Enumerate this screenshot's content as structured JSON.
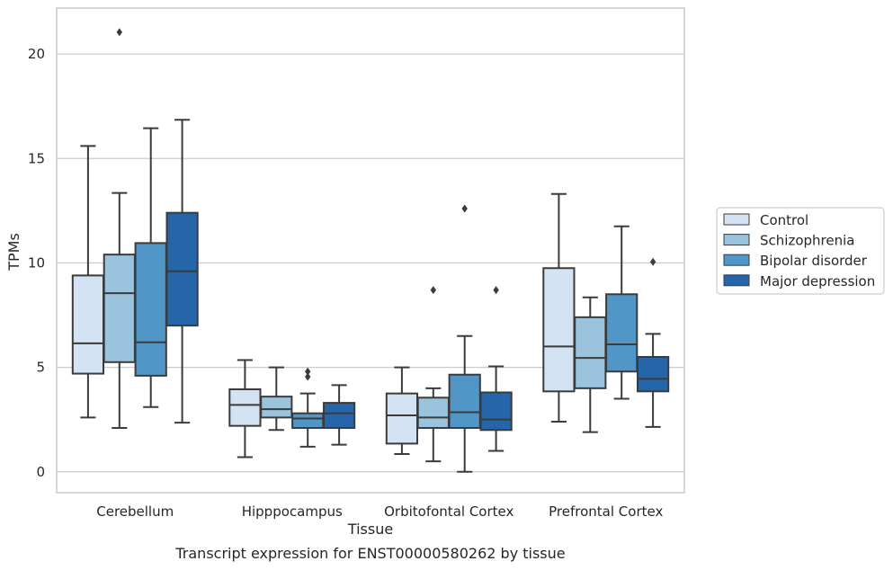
{
  "chart_data": {
    "type": "box",
    "caption": "Transcript expression for ENST00000580262 by tissue",
    "xlabel": "Tissue",
    "ylabel": "TPMs",
    "ylim": [
      -1,
      22.2
    ],
    "yticks": [
      0,
      5,
      10,
      15,
      20
    ],
    "ytick_labels": [
      "0",
      "5",
      "10",
      "15",
      "20"
    ],
    "grid": "horizontal",
    "legend_position": "right",
    "categories": [
      "Cerebellum",
      "Hipppocampus",
      "Orbitofontal Cortex",
      "Prefrontal Cortex"
    ],
    "series": [
      {
        "name": "Control",
        "color": "#d4e3f3",
        "boxes": [
          {
            "whislo": 2.6,
            "q1": 4.7,
            "med": 6.15,
            "q3": 9.4,
            "whishi": 15.6,
            "fliers": []
          },
          {
            "whislo": 0.7,
            "q1": 2.2,
            "med": 3.2,
            "q3": 3.95,
            "whishi": 5.35,
            "fliers": []
          },
          {
            "whislo": 0.85,
            "q1": 1.35,
            "med": 2.7,
            "q3": 3.75,
            "whishi": 5.0,
            "fliers": []
          },
          {
            "whislo": 2.4,
            "q1": 3.85,
            "med": 6.0,
            "q3": 9.75,
            "whishi": 13.3,
            "fliers": []
          }
        ]
      },
      {
        "name": "Schizophrenia",
        "color": "#9ac3de",
        "boxes": [
          {
            "whislo": 2.1,
            "q1": 5.25,
            "med": 8.55,
            "q3": 10.4,
            "whishi": 13.35,
            "fliers": [
              21.05
            ]
          },
          {
            "whislo": 2.0,
            "q1": 2.6,
            "med": 3.0,
            "q3": 3.6,
            "whishi": 5.0,
            "fliers": []
          },
          {
            "whislo": 0.5,
            "q1": 2.1,
            "med": 2.6,
            "q3": 3.55,
            "whishi": 4.0,
            "fliers": [
              8.7
            ]
          },
          {
            "whislo": 1.9,
            "q1": 4.0,
            "med": 5.45,
            "q3": 7.4,
            "whishi": 8.35,
            "fliers": []
          }
        ]
      },
      {
        "name": "Bipolar disorder",
        "color": "#5096c7",
        "boxes": [
          {
            "whislo": 3.1,
            "q1": 4.6,
            "med": 6.2,
            "q3": 10.95,
            "whishi": 16.45,
            "fliers": []
          },
          {
            "whislo": 1.2,
            "q1": 2.1,
            "med": 2.55,
            "q3": 2.8,
            "whishi": 3.75,
            "fliers": [
              4.55,
              4.8
            ]
          },
          {
            "whislo": 0.0,
            "q1": 2.1,
            "med": 2.85,
            "q3": 4.65,
            "whishi": 6.5,
            "fliers": [
              12.6
            ]
          },
          {
            "whislo": 3.5,
            "q1": 4.8,
            "med": 6.1,
            "q3": 8.5,
            "whishi": 11.75,
            "fliers": []
          }
        ]
      },
      {
        "name": "Major depression",
        "color": "#2565a9",
        "boxes": [
          {
            "whislo": 2.35,
            "q1": 7.0,
            "med": 9.6,
            "q3": 12.4,
            "whishi": 16.85,
            "fliers": []
          },
          {
            "whislo": 1.3,
            "q1": 2.1,
            "med": 2.8,
            "q3": 3.3,
            "whishi": 4.15,
            "fliers": []
          },
          {
            "whislo": 1.0,
            "q1": 2.0,
            "med": 2.5,
            "q3": 3.8,
            "whishi": 5.05,
            "fliers": [
              8.7
            ]
          },
          {
            "whislo": 2.15,
            "q1": 3.85,
            "med": 4.45,
            "q3": 5.5,
            "whishi": 6.6,
            "fliers": [
              10.05
            ]
          }
        ]
      }
    ]
  }
}
